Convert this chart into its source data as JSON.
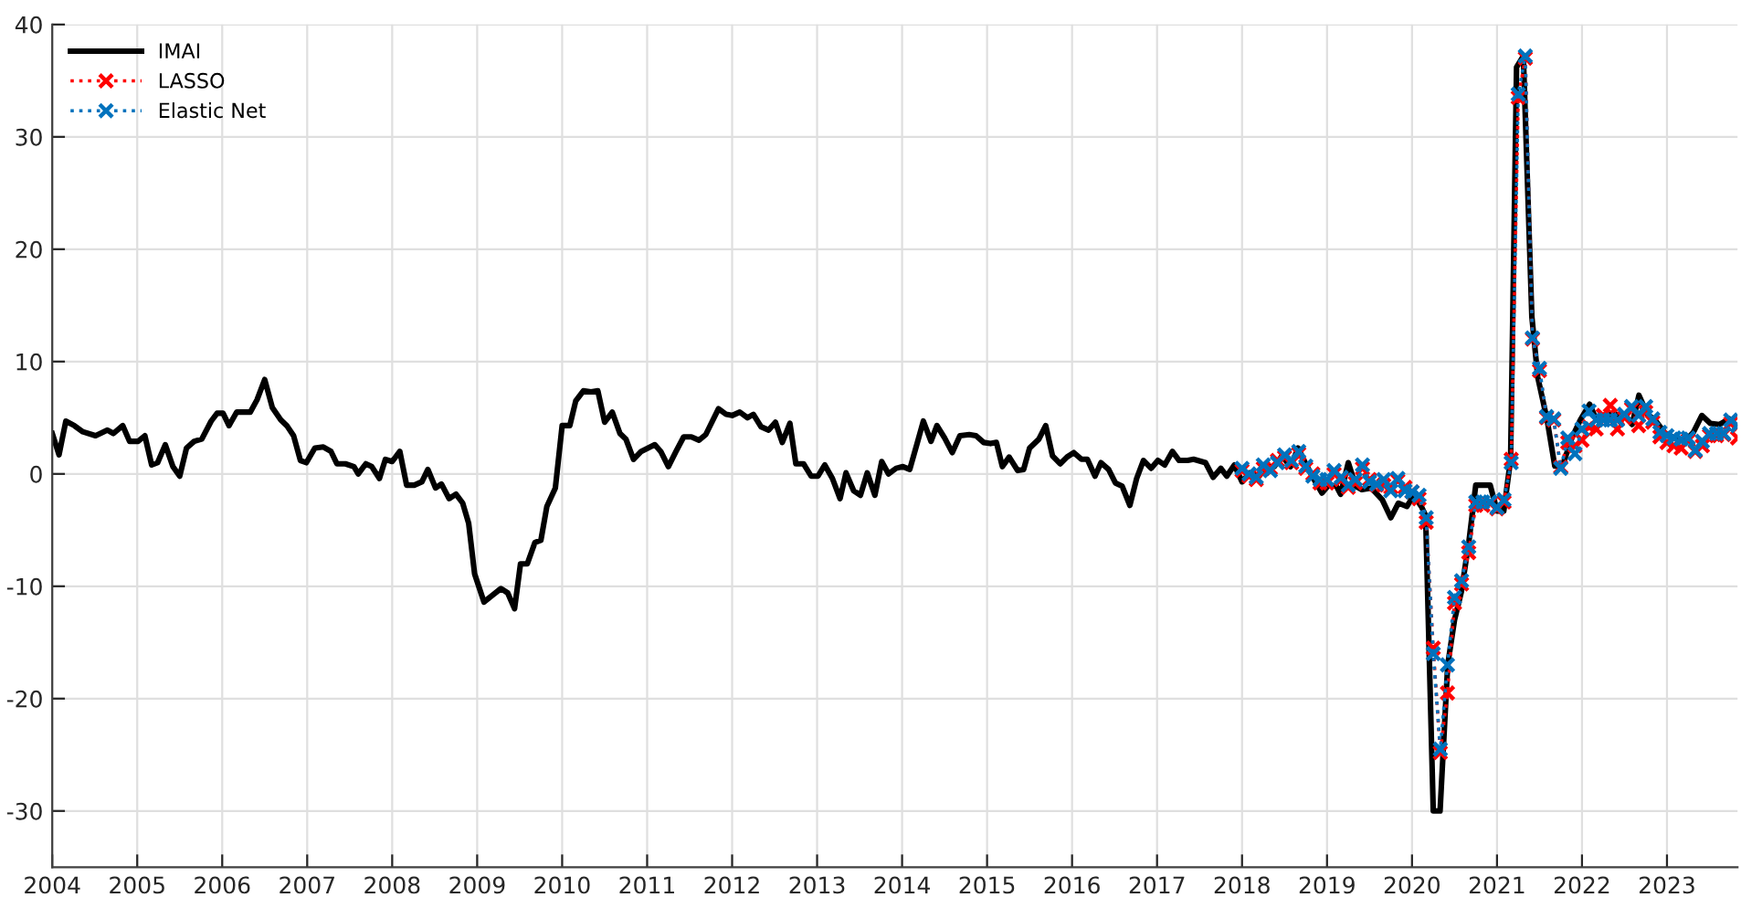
{
  "chart_data": {
    "type": "line",
    "xlim": [
      2004,
      2023.83
    ],
    "xticks": [
      2004,
      2005,
      2006,
      2007,
      2008,
      2009,
      2010,
      2011,
      2012,
      2013,
      2014,
      2015,
      2016,
      2017,
      2018,
      2019,
      2020,
      2021,
      2022,
      2023
    ],
    "ylim": [
      -35,
      40
    ],
    "yticks": [
      -30,
      -20,
      -10,
      0,
      10,
      20,
      30,
      40
    ],
    "grid": true,
    "legend": "top left",
    "series": [
      {
        "name": "IMAI",
        "color": "#000000",
        "line_style": "solid",
        "marker": "none",
        "x": [
          2004.0,
          2004.08,
          2004.16,
          2004.26,
          2004.36,
          2004.51,
          2004.65,
          2004.72,
          2004.83,
          2004.91,
          2005.01,
          2005.09,
          2005.17,
          2005.24,
          2005.33,
          2005.42,
          2005.5,
          2005.58,
          2005.67,
          2005.76,
          2005.87,
          2005.94,
          2006.01,
          2006.08,
          2006.17,
          2006.33,
          2006.41,
          2006.5,
          2006.59,
          2006.69,
          2006.76,
          2006.84,
          2006.92,
          2006.99,
          2007.09,
          2007.19,
          2007.28,
          2007.35,
          2007.45,
          2007.55,
          2007.6,
          2007.69,
          2007.76,
          2007.85,
          2007.92,
          2008.0,
          2008.09,
          2008.17,
          2008.26,
          2008.35,
          2008.42,
          2008.51,
          2008.58,
          2008.67,
          2008.75,
          2008.83,
          2008.9,
          2008.97,
          2009.08,
          2009.18,
          2009.28,
          2009.36,
          2009.44,
          2009.51,
          2009.59,
          2009.68,
          2009.75,
          2009.82,
          2009.92,
          2010.0,
          2010.09,
          2010.16,
          2010.25,
          2010.34,
          2010.42,
          2010.5,
          2010.59,
          2010.68,
          2010.75,
          2010.84,
          2010.93,
          2011.09,
          2011.16,
          2011.25,
          2011.34,
          2011.43,
          2011.52,
          2011.61,
          2011.69,
          2011.84,
          2011.93,
          2012.0,
          2012.09,
          2012.18,
          2012.25,
          2012.34,
          2012.43,
          2012.51,
          2012.59,
          2012.68,
          2012.75,
          2012.84,
          2012.93,
          2013.01,
          2013.09,
          2013.18,
          2013.27,
          2013.34,
          2013.43,
          2013.51,
          2013.59,
          2013.68,
          2013.76,
          2013.84,
          2013.93,
          2014.01,
          2014.09,
          2014.18,
          2014.25,
          2014.34,
          2014.41,
          2014.5,
          2014.59,
          2014.68,
          2014.79,
          2014.87,
          2014.96,
          2015.04,
          2015.11,
          2015.18,
          2015.26,
          2015.36,
          2015.43,
          2015.5,
          2015.61,
          2015.69,
          2015.77,
          2015.86,
          2015.94,
          2016.02,
          2016.11,
          2016.18,
          2016.27,
          2016.34,
          2016.43,
          2016.51,
          2016.59,
          2016.68,
          2016.76,
          2016.84,
          2016.93,
          2017.01,
          2017.09,
          2017.18,
          2017.26,
          2017.36,
          2017.43,
          2017.57,
          2017.66,
          2017.75,
          2017.82,
          2017.91,
          2018.0,
          2018.09,
          2018.2,
          2018.29,
          2018.38,
          2018.47,
          2018.57,
          2018.66,
          2018.75,
          2018.84,
          2018.94,
          2019.02,
          2019.11,
          2019.16,
          2019.25,
          2019.34,
          2019.41,
          2019.52,
          2019.65,
          2019.75,
          2019.84,
          2019.94,
          2020.02,
          2020.11,
          2020.16,
          2020.25,
          2020.33,
          2020.42,
          2020.5,
          2020.58,
          2020.67,
          2020.75,
          2020.83,
          2020.92,
          2021.0,
          2021.08,
          2021.16,
          2021.23,
          2021.31,
          2021.41,
          2021.48,
          2021.59,
          2021.68,
          2021.77,
          2021.88,
          2021.98,
          2022.09,
          2022.17,
          2022.3,
          2022.41,
          2022.52,
          2022.59,
          2022.67,
          2022.77,
          2022.86,
          2022.98,
          2023.09,
          2023.21,
          2023.31,
          2023.41,
          2023.51,
          2023.62,
          2023.73,
          2023.79
        ],
        "values": [
          3.6,
          1.7,
          4.7,
          4.3,
          3.75,
          3.4,
          3.9,
          3.6,
          4.3,
          2.9,
          2.9,
          3.4,
          0.8,
          1.0,
          2.6,
          0.65,
          -0.2,
          2.3,
          2.9,
          3.1,
          4.7,
          5.4,
          5.4,
          4.3,
          5.5,
          5.5,
          6.6,
          8.4,
          5.9,
          4.8,
          4.3,
          3.4,
          1.2,
          1.0,
          2.3,
          2.4,
          2.0,
          0.9,
          0.9,
          0.65,
          0,
          0.9,
          0.65,
          -0.4,
          1.3,
          1.1,
          2.0,
          -1.0,
          -1.0,
          -0.7,
          0.4,
          -1.25,
          -0.9,
          -2.2,
          -1.8,
          -2.6,
          -4.4,
          -8.9,
          -11.4,
          -10.8,
          -10.2,
          -10.6,
          -12.0,
          -8.0,
          -8.0,
          -6.1,
          -5.9,
          -2.9,
          -1.25,
          4.3,
          4.3,
          6.5,
          7.4,
          7.3,
          7.4,
          4.6,
          5.5,
          3.6,
          3.1,
          1.3,
          2.0,
          2.6,
          2.0,
          0.65,
          2.0,
          3.3,
          3.3,
          3.0,
          3.5,
          5.8,
          5.3,
          5.2,
          5.5,
          5.0,
          5.3,
          4.2,
          3.9,
          4.6,
          2.8,
          4.5,
          0.9,
          0.9,
          -0.2,
          -0.2,
          0.8,
          -0.4,
          -2.2,
          0.1,
          -1.5,
          -1.9,
          0.1,
          -1.9,
          1.1,
          0,
          0.5,
          0.65,
          0.4,
          2.8,
          4.7,
          2.9,
          4.3,
          3.2,
          1.9,
          3.4,
          3.5,
          3.4,
          2.8,
          2.7,
          2.8,
          0.65,
          1.5,
          0.3,
          0.4,
          2.3,
          3.1,
          4.3,
          1.6,
          0.9,
          1.5,
          1.9,
          1.3,
          1.3,
          -0.2,
          1.0,
          0.4,
          -0.8,
          -1.1,
          -2.8,
          -0.4,
          1.2,
          0.5,
          1.2,
          0.8,
          2.0,
          1.2,
          1.2,
          1.3,
          1.0,
          -0.3,
          0.5,
          -0.2,
          0.8,
          -0.7,
          0.1,
          -0.2,
          0.65,
          0.65,
          1.6,
          0.65,
          2.3,
          0.9,
          -0.4,
          -1.7,
          -1.0,
          -1.1,
          -1.8,
          1.0,
          -1.1,
          -1.4,
          -1.25,
          -2.3,
          -3.9,
          -2.6,
          -2.9,
          -1.9,
          -2.9,
          -3.7,
          -30,
          -30,
          -17,
          -13,
          -10.5,
          -6,
          -1.0,
          -1.0,
          -1.0,
          -3.3,
          -3.3,
          1.3,
          36.2,
          37.2,
          14.0,
          8.6,
          4.8,
          0.7,
          0.7,
          3.2,
          4.8,
          6.2,
          4.8,
          5.3,
          5.3,
          5.1,
          4.4,
          7.0,
          5.3,
          4.8,
          3.6,
          3.2,
          2.9,
          3.7,
          5.2,
          4.5,
          4.4,
          4.9,
          4.3
        ]
      },
      {
        "name": "LASSO",
        "color": "#ff0000",
        "line_style": "dotted",
        "marker": "cross",
        "values": [
          0.3,
          -0.2,
          -0.5,
          0.5,
          0.5,
          1.2,
          1.5,
          1.0,
          1.8,
          0.5,
          0.0,
          -0.8,
          -0.8,
          0.0,
          -0.5,
          -1.2,
          -0.8,
          0.5,
          -0.5,
          -1.0,
          -1.0,
          -1.2,
          -0.6,
          -1.2,
          -1.6,
          -2.2,
          -4.3,
          -15.5,
          -24.8,
          -19.5,
          -11.5,
          -9.8,
          -7,
          -2.8,
          -2.8,
          -2.6,
          -3.1,
          -2.5,
          1.3,
          33.5,
          37.0,
          12.0,
          9.2,
          5.0,
          4.8,
          0.6,
          2.8,
          2.5,
          3.0,
          4.2,
          4.0,
          5.2,
          6.1,
          4.0,
          5.0,
          5.8,
          4.3,
          5.5,
          4.6,
          3.3,
          2.8,
          2.5,
          2.3,
          3.0,
          2.0,
          2.5,
          3.4,
          3.4,
          3.5,
          4.5,
          3.2
        ]
      },
      {
        "name": "Elastic Net",
        "color": "#0072bd",
        "line_style": "dotted",
        "marker": "cross",
        "values": [
          0.5,
          0.0,
          -0.3,
          0.8,
          0.3,
          1.0,
          1.7,
          1.2,
          2.0,
          0.7,
          -0.2,
          -0.5,
          -0.5,
          0.3,
          -0.3,
          -1.0,
          -0.5,
          0.8,
          -0.7,
          -0.9,
          -0.5,
          -1.5,
          -0.4,
          -1.5,
          -1.6,
          -1.9,
          -3.9,
          -16,
          -24.5,
          -17,
          -11,
          -9.5,
          -6.5,
          -2.5,
          -2.5,
          -2.5,
          -3.0,
          -2.3,
          1.0,
          33.8,
          37.2,
          12.1,
          9.4,
          5.1,
          4.9,
          0.5,
          3.2,
          1.8,
          4.0,
          5.6,
          4.8,
          4.8,
          4.8,
          4.8,
          5.3,
          6.0,
          5.2,
          6.0,
          4.9,
          3.7,
          3.4,
          3.2,
          3.1,
          3.2,
          2.1,
          2.9,
          3.6,
          3.6,
          3.6,
          4.8,
          4.3
        ]
      }
    ],
    "x": [
      2018.0,
      2018.083,
      2018.167,
      2018.25,
      2018.333,
      2018.417,
      2018.5,
      2018.583,
      2018.667,
      2018.75,
      2018.833,
      2018.917,
      2019.0,
      2019.083,
      2019.167,
      2019.25,
      2019.333,
      2019.417,
      2019.5,
      2019.583,
      2019.667,
      2019.75,
      2019.833,
      2019.917,
      2020.0,
      2020.083,
      2020.167,
      2020.25,
      2020.333,
      2020.417,
      2020.5,
      2020.583,
      2020.667,
      2020.75,
      2020.833,
      2020.917,
      2021.0,
      2021.083,
      2021.167,
      2021.25,
      2021.333,
      2021.417,
      2021.5,
      2021.583,
      2021.667,
      2021.75,
      2021.833,
      2021.917,
      2022.0,
      2022.083,
      2022.167,
      2022.25,
      2022.333,
      2022.417,
      2022.5,
      2022.583,
      2022.667,
      2022.75,
      2022.833,
      2022.917,
      2023.0,
      2023.083,
      2023.167,
      2023.25,
      2023.333,
      2023.417,
      2023.5,
      2023.583,
      2023.667,
      2023.75,
      2023.83
    ]
  }
}
